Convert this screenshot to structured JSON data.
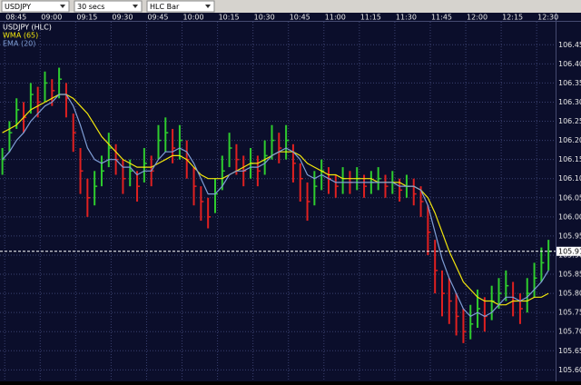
{
  "toolbar": {
    "symbol": "USDJPY",
    "interval": "30 secs",
    "style": "HLC Bar"
  },
  "chart_data": {
    "type": "hlc",
    "xlim": [
      523,
      758
    ],
    "xticks": [
      {
        "value": 525,
        "label": "08:45"
      },
      {
        "value": 540,
        "label": "09:00"
      },
      {
        "value": 555,
        "label": "09:15"
      },
      {
        "value": 570,
        "label": "09:30"
      },
      {
        "value": 585,
        "label": "09:45"
      },
      {
        "value": 600,
        "label": "10:00"
      },
      {
        "value": 615,
        "label": "10:15"
      },
      {
        "value": 630,
        "label": "10:30"
      },
      {
        "value": 645,
        "label": "10:45"
      },
      {
        "value": 660,
        "label": "11:00"
      },
      {
        "value": 675,
        "label": "11:15"
      },
      {
        "value": 690,
        "label": "11:30"
      },
      {
        "value": 705,
        "label": "11:45"
      },
      {
        "value": 720,
        "label": "12:00"
      },
      {
        "value": 735,
        "label": "12:15"
      },
      {
        "value": 750,
        "label": "12:30"
      }
    ],
    "ylim": [
      105.57,
      106.51
    ],
    "yticks": [
      {
        "value": 105.6,
        "label": "105.60"
      },
      {
        "value": 105.65,
        "label": "105.65"
      },
      {
        "value": 105.7,
        "label": "105.70"
      },
      {
        "value": 105.75,
        "label": "105.75"
      },
      {
        "value": 105.8,
        "label": "105.80"
      },
      {
        "value": 105.85,
        "label": "105.85"
      },
      {
        "value": 105.9,
        "label": "105.90"
      },
      {
        "value": 105.95,
        "label": "105.95"
      },
      {
        "value": 106.0,
        "label": "106.00"
      },
      {
        "value": 106.05,
        "label": "106.05"
      },
      {
        "value": 106.1,
        "label": "106.10"
      },
      {
        "value": 106.15,
        "label": "106.15"
      },
      {
        "value": 106.2,
        "label": "106.20"
      },
      {
        "value": 106.25,
        "label": "106.25"
      },
      {
        "value": 106.3,
        "label": "106.30"
      },
      {
        "value": 106.35,
        "label": "106.35"
      },
      {
        "value": 106.4,
        "label": "106.40"
      },
      {
        "value": 106.45,
        "label": "106.45"
      }
    ],
    "grid": true,
    "last_price": 105.91,
    "x": [
      524,
      527,
      530,
      533,
      536,
      539,
      542,
      545,
      548,
      551,
      554,
      557,
      560,
      563,
      566,
      569,
      572,
      575,
      578,
      581,
      584,
      587,
      590,
      593,
      596,
      599,
      602,
      605,
      608,
      611,
      614,
      617,
      620,
      623,
      626,
      629,
      632,
      635,
      638,
      641,
      644,
      647,
      650,
      653,
      656,
      659,
      662,
      665,
      668,
      671,
      674,
      677,
      680,
      683,
      686,
      689,
      692,
      695,
      698,
      701,
      704,
      707,
      710,
      713,
      716,
      719,
      722,
      725,
      728,
      731,
      734,
      737,
      740,
      743,
      746,
      749,
      752,
      755
    ],
    "series": [
      {
        "name": "USDJPY (HLC)",
        "color": "#ffffff",
        "up_color": "#2ecc2e",
        "down_color": "#e02020",
        "high": [
          106.18,
          106.25,
          106.31,
          106.3,
          106.35,
          106.34,
          106.38,
          106.36,
          106.39,
          106.35,
          106.27,
          106.18,
          106.1,
          106.12,
          106.16,
          106.22,
          106.19,
          106.15,
          106.15,
          106.12,
          106.18,
          106.16,
          106.24,
          106.26,
          106.23,
          106.24,
          106.2,
          106.13,
          106.08,
          106.05,
          106.1,
          106.16,
          106.22,
          106.19,
          106.16,
          106.18,
          106.16,
          106.2,
          106.24,
          106.22,
          106.24,
          106.19,
          106.14,
          106.09,
          106.12,
          106.15,
          106.13,
          106.11,
          106.13,
          106.12,
          106.13,
          106.11,
          106.12,
          106.13,
          106.11,
          106.12,
          106.1,
          106.11,
          106.1,
          106.08,
          106.03,
          105.94,
          105.86,
          105.84,
          105.8,
          105.76,
          105.77,
          105.81,
          105.79,
          105.82,
          105.84,
          105.86,
          105.83,
          105.8,
          105.84,
          105.88,
          105.92,
          105.94
        ],
        "low": [
          106.11,
          106.17,
          106.23,
          106.22,
          106.27,
          106.26,
          106.3,
          106.29,
          106.31,
          106.26,
          106.17,
          106.06,
          106.0,
          106.03,
          106.08,
          106.13,
          106.11,
          106.06,
          106.08,
          106.04,
          106.09,
          106.08,
          106.15,
          106.17,
          106.14,
          106.15,
          106.1,
          106.03,
          105.99,
          105.97,
          106.01,
          106.07,
          106.13,
          106.11,
          106.08,
          106.1,
          106.08,
          106.11,
          106.15,
          106.14,
          106.15,
          106.09,
          106.04,
          105.99,
          106.03,
          106.07,
          106.06,
          106.05,
          106.06,
          106.06,
          106.07,
          106.05,
          106.06,
          106.07,
          106.05,
          106.06,
          106.04,
          106.05,
          106.03,
          106.0,
          105.9,
          105.8,
          105.74,
          105.72,
          105.69,
          105.67,
          105.68,
          105.71,
          105.7,
          105.73,
          105.76,
          105.78,
          105.74,
          105.72,
          105.75,
          105.79,
          105.83,
          105.86
        ],
        "close": [
          106.15,
          106.22,
          106.28,
          106.26,
          106.32,
          106.3,
          106.35,
          106.33,
          106.36,
          106.31,
          106.22,
          106.12,
          106.05,
          106.08,
          106.12,
          106.18,
          106.15,
          106.1,
          106.12,
          106.08,
          106.14,
          106.12,
          106.2,
          106.22,
          106.18,
          106.2,
          106.15,
          106.08,
          106.04,
          106.0,
          106.06,
          106.12,
          106.18,
          106.15,
          106.12,
          106.14,
          106.12,
          106.16,
          106.2,
          106.18,
          106.2,
          106.14,
          106.1,
          106.04,
          106.08,
          106.12,
          106.1,
          106.08,
          106.1,
          106.09,
          106.1,
          106.08,
          106.09,
          106.1,
          106.08,
          106.09,
          106.07,
          106.08,
          106.06,
          106.04,
          105.96,
          105.86,
          105.8,
          105.78,
          105.74,
          105.7,
          105.72,
          105.76,
          105.74,
          105.78,
          105.8,
          105.82,
          105.78,
          105.76,
          105.8,
          105.84,
          105.88,
          105.91
        ]
      },
      {
        "name": "WMA (65)",
        "color": "#f2e60c",
        "values": [
          106.22,
          106.23,
          106.24,
          106.26,
          106.28,
          106.29,
          106.3,
          106.31,
          106.32,
          106.32,
          106.31,
          106.29,
          106.27,
          106.24,
          106.21,
          106.19,
          106.17,
          106.15,
          106.14,
          106.13,
          106.13,
          106.13,
          106.14,
          106.15,
          106.16,
          106.16,
          106.15,
          106.13,
          106.11,
          106.1,
          106.1,
          106.1,
          106.11,
          106.12,
          106.13,
          106.14,
          106.14,
          106.15,
          106.16,
          106.17,
          106.17,
          106.17,
          106.16,
          106.14,
          106.13,
          106.12,
          106.11,
          106.11,
          106.1,
          106.1,
          106.1,
          106.1,
          106.1,
          106.09,
          106.09,
          106.09,
          106.09,
          106.08,
          106.08,
          106.07,
          106.05,
          106.01,
          105.96,
          105.91,
          105.87,
          105.83,
          105.81,
          105.79,
          105.78,
          105.78,
          105.77,
          105.77,
          105.78,
          105.78,
          105.78,
          105.79,
          105.79,
          105.8
        ]
      },
      {
        "name": "EMA (20)",
        "color": "#7f9ed6",
        "values": [
          106.15,
          106.17,
          106.2,
          106.22,
          106.25,
          106.27,
          106.29,
          106.3,
          106.32,
          106.32,
          106.29,
          106.24,
          106.18,
          106.15,
          106.14,
          106.15,
          106.15,
          106.13,
          106.13,
          106.11,
          106.12,
          106.12,
          106.15,
          106.17,
          106.17,
          106.18,
          106.17,
          106.14,
          106.1,
          106.06,
          106.06,
          106.08,
          106.11,
          106.12,
          106.12,
          106.13,
          106.13,
          106.14,
          106.16,
          106.17,
          106.18,
          106.17,
          106.15,
          106.11,
          106.1,
          106.11,
          106.1,
          106.09,
          106.09,
          106.09,
          106.09,
          106.09,
          106.09,
          106.09,
          106.09,
          106.09,
          106.08,
          106.08,
          106.08,
          106.07,
          106.03,
          105.96,
          105.89,
          105.84,
          105.8,
          105.76,
          105.74,
          105.75,
          105.74,
          105.75,
          105.77,
          105.79,
          105.79,
          105.78,
          105.79,
          105.81,
          105.83,
          105.86
        ]
      }
    ]
  }
}
